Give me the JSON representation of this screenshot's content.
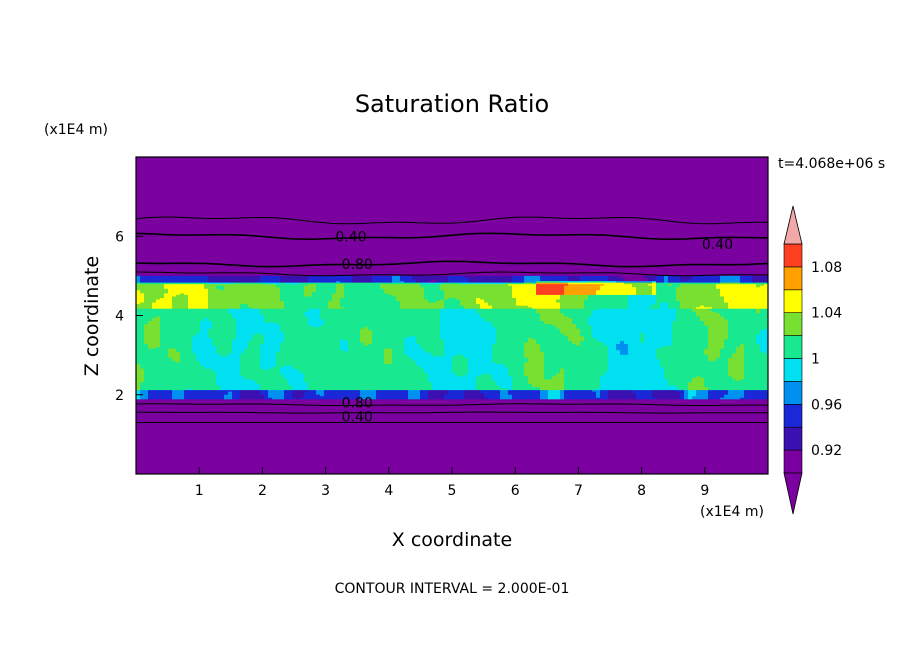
{
  "chart_data": {
    "type": "contour",
    "title": "Saturation Ratio",
    "xlabel": "X coordinate",
    "ylabel": "Z coordinate",
    "x_scale_label": "(x1E4 m)",
    "y_scale_label": "(x1E4 m)",
    "time_label": "t=4.068e+06 s",
    "footer": "CONTOUR INTERVAL = 2.000E-01",
    "xlim": [
      0,
      10
    ],
    "ylim": [
      0,
      8
    ],
    "x_ticks": [
      "1",
      "2",
      "3",
      "4",
      "5",
      "6",
      "7",
      "8",
      "9"
    ],
    "y_ticks": [
      "2",
      "4",
      "6"
    ],
    "colorbar": {
      "levels": [
        0.9,
        0.92,
        0.94,
        0.96,
        0.98,
        1.0,
        1.02,
        1.04,
        1.06,
        1.08,
        1.1
      ],
      "tick_labels": [
        "0.92",
        "0.96",
        "1",
        "1.04",
        "1.08"
      ],
      "colors": [
        "#7a00a0",
        "#3a10b0",
        "#1a28d8",
        "#0090f0",
        "#00e0f0",
        "#18e890",
        "#78e030",
        "#ffff00",
        "#ffa000",
        "#ff4020",
        "#ff2040"
      ],
      "under_color": "#7a00a0",
      "over_color": "#f0a8a8"
    },
    "contour_lines": [
      {
        "value": "0.40",
        "label_x": 3.4,
        "label_z": 6.0
      },
      {
        "value": "0.80",
        "label_x": 3.5,
        "label_z": 5.3
      },
      {
        "value": "0.40",
        "label_x": 9.2,
        "label_z": 5.8
      },
      {
        "value": "0.80",
        "label_x": 3.5,
        "label_z": 1.8
      },
      {
        "value": "0.40",
        "label_x": 3.5,
        "label_z": 1.45
      }
    ],
    "layers": {
      "dry_upper": [
        5.2,
        8.0
      ],
      "moist_band": [
        1.9,
        5.0
      ],
      "dry_lower": [
        0.0,
        1.7
      ]
    }
  }
}
